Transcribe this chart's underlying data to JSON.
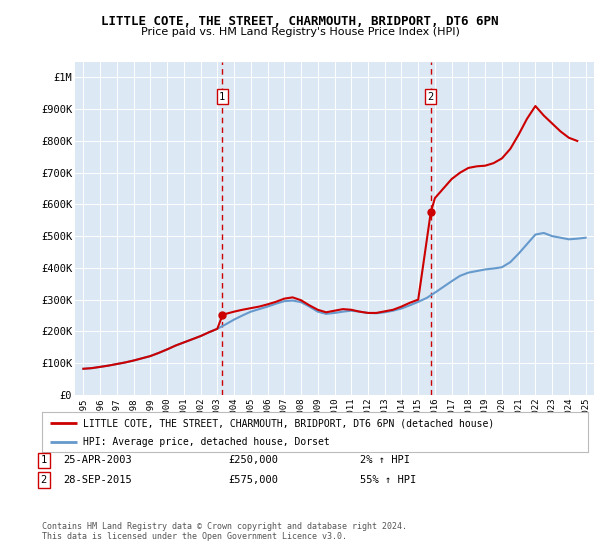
{
  "title": "LITTLE COTE, THE STREET, CHARMOUTH, BRIDPORT, DT6 6PN",
  "subtitle": "Price paid vs. HM Land Registry's House Price Index (HPI)",
  "legend_line1": "LITTLE COTE, THE STREET, CHARMOUTH, BRIDPORT, DT6 6PN (detached house)",
  "legend_line2": "HPI: Average price, detached house, Dorset",
  "annotation1_label": "1",
  "annotation1_date": "25-APR-2003",
  "annotation1_price": "£250,000",
  "annotation1_hpi": "2% ↑ HPI",
  "annotation1_year": 2003.3,
  "annotation1_value": 250000,
  "annotation2_label": "2",
  "annotation2_date": "28-SEP-2015",
  "annotation2_price": "£575,000",
  "annotation2_hpi": "55% ↑ HPI",
  "annotation2_year": 2015.75,
  "annotation2_value": 575000,
  "ylabel_ticks": [
    "£0",
    "£100K",
    "£200K",
    "£300K",
    "£400K",
    "£500K",
    "£600K",
    "£700K",
    "£800K",
    "£900K",
    "£1M"
  ],
  "ytick_values": [
    0,
    100000,
    200000,
    300000,
    400000,
    500000,
    600000,
    700000,
    800000,
    900000,
    1000000
  ],
  "ylim": [
    0,
    1050000
  ],
  "xlim_start": 1994.5,
  "xlim_end": 2025.5,
  "background_color": "#dce9f5",
  "outer_bg_color": "#ffffff",
  "line_color_red": "#cc0000",
  "line_color_blue": "#6699cc",
  "dashed_line_color": "#cc0000",
  "footer_text": "Contains HM Land Registry data © Crown copyright and database right 2024.\nThis data is licensed under the Open Government Licence v3.0.",
  "hpi_years": [
    1995,
    1995.5,
    1996,
    1996.5,
    1997,
    1997.5,
    1998,
    1998.5,
    1999,
    1999.5,
    2000,
    2000.5,
    2001,
    2001.5,
    2002,
    2002.5,
    2003,
    2003.5,
    2004,
    2004.5,
    2005,
    2005.5,
    2006,
    2006.5,
    2007,
    2007.5,
    2008,
    2008.5,
    2009,
    2009.5,
    2010,
    2010.5,
    2011,
    2011.5,
    2012,
    2012.5,
    2013,
    2013.5,
    2014,
    2014.5,
    2015,
    2015.5,
    2016,
    2016.5,
    2017,
    2017.5,
    2018,
    2018.5,
    2019,
    2019.5,
    2020,
    2020.5,
    2021,
    2021.5,
    2022,
    2022.5,
    2023,
    2023.5,
    2024,
    2024.5,
    2025
  ],
  "hpi_values": [
    82000,
    84000,
    88000,
    92000,
    97000,
    102000,
    108000,
    115000,
    122000,
    132000,
    143000,
    155000,
    165000,
    175000,
    185000,
    197000,
    208000,
    222000,
    237000,
    250000,
    262000,
    270000,
    278000,
    287000,
    295000,
    297000,
    292000,
    278000,
    262000,
    255000,
    258000,
    262000,
    265000,
    262000,
    258000,
    257000,
    260000,
    265000,
    272000,
    282000,
    293000,
    305000,
    322000,
    340000,
    358000,
    375000,
    385000,
    390000,
    395000,
    398000,
    402000,
    418000,
    445000,
    475000,
    505000,
    510000,
    500000,
    495000,
    490000,
    492000,
    495000
  ],
  "price_years": [
    1995,
    1995.5,
    1996,
    1996.5,
    1997,
    1997.5,
    1998,
    1998.5,
    1999,
    1999.5,
    2000,
    2000.5,
    2001,
    2001.5,
    2002,
    2002.5,
    2003,
    2003.3,
    2003.5,
    2004,
    2004.5,
    2005,
    2005.5,
    2006,
    2006.5,
    2007,
    2007.5,
    2008,
    2008.5,
    2009,
    2009.5,
    2010,
    2010.5,
    2011,
    2011.5,
    2012,
    2012.5,
    2013,
    2013.5,
    2014,
    2014.5,
    2015,
    2015.75,
    2016,
    2016.5,
    2017,
    2017.5,
    2018,
    2018.5,
    2019,
    2019.5,
    2020,
    2020.5,
    2021,
    2021.5,
    2022,
    2022.5,
    2023,
    2023.5,
    2024,
    2024.5
  ],
  "price_values": [
    82000,
    84000,
    88000,
    92000,
    97000,
    102000,
    108000,
    115000,
    122000,
    132000,
    143000,
    155000,
    165000,
    175000,
    185000,
    197000,
    208000,
    250000,
    255000,
    262000,
    268000,
    273000,
    278000,
    285000,
    293000,
    303000,
    307000,
    298000,
    282000,
    268000,
    260000,
    265000,
    270000,
    268000,
    262000,
    258000,
    258000,
    263000,
    268000,
    278000,
    290000,
    300000,
    575000,
    620000,
    650000,
    680000,
    700000,
    715000,
    720000,
    722000,
    730000,
    745000,
    775000,
    820000,
    870000,
    910000,
    880000,
    855000,
    830000,
    810000,
    800000
  ]
}
